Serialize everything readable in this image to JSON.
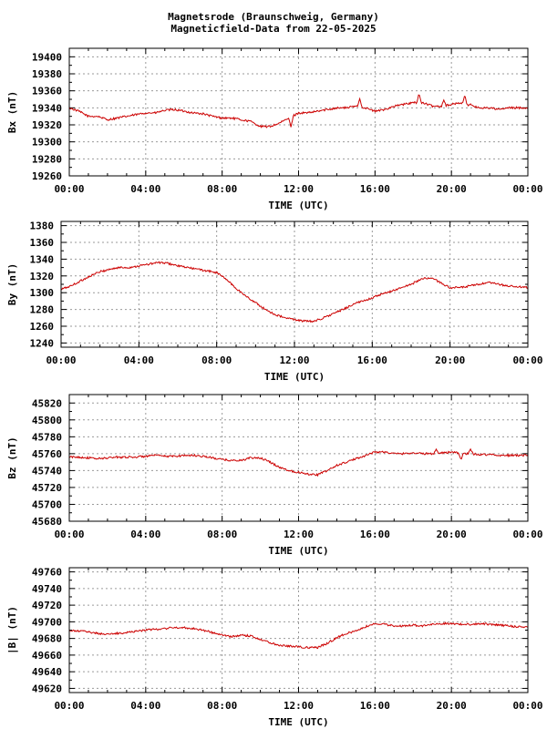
{
  "header": {
    "title_line1": "Magnetsrode (Braunschweig, Germany)",
    "title_line2": "Magneticfield-Data from 22-05-2025"
  },
  "colors": {
    "trace": "#cc0000",
    "grid": "#9a9a9a",
    "frame": "#000000"
  },
  "chart_data": [
    {
      "type": "line",
      "ylabel": "Bx (nT)",
      "xlabel": "TIME (UTC)",
      "grid": true,
      "xlim": [
        0,
        24
      ],
      "ylim": [
        19260,
        19410
      ],
      "yticks": [
        19260,
        19280,
        19300,
        19320,
        19340,
        19360,
        19380,
        19400
      ],
      "xticklabels": [
        "00:00",
        "04:00",
        "08:00",
        "12:00",
        "16:00",
        "20:00",
        "00:00"
      ],
      "series": [
        {
          "x": [
            0,
            0.5,
            1,
            1.5,
            2,
            2.5,
            3,
            3.5,
            4,
            4.5,
            5,
            5.5,
            6,
            6.5,
            7,
            7.5,
            8,
            8.5,
            9,
            9.5,
            10,
            10.5,
            11,
            11.5,
            12,
            12.5,
            13,
            13.5,
            14,
            14.5,
            15,
            15.5,
            16,
            16.5,
            17,
            17.5,
            18,
            18.5,
            19,
            19.5,
            20,
            20.5,
            21,
            21.5,
            22,
            22.5,
            23,
            23.5,
            24
          ],
          "values": [
            19340,
            19336,
            19330,
            19330,
            19326,
            19328,
            19330,
            19332,
            19334,
            19334,
            19337,
            19338,
            19336,
            19334,
            19333,
            19330,
            19328,
            19328,
            19326,
            19324,
            19318,
            19318,
            19322,
            19328,
            19334,
            19334,
            19336,
            19338,
            19340,
            19340,
            19342,
            19340,
            19336,
            19338,
            19342,
            19344,
            19346,
            19346,
            19342,
            19342,
            19344,
            19346,
            19342,
            19340,
            19340,
            19338,
            19340,
            19340,
            19340
          ],
          "spikes": [
            [
              15.2,
              19352
            ],
            [
              18.3,
              19358
            ],
            [
              19.6,
              19350
            ],
            [
              20.7,
              19356
            ],
            [
              21.0,
              19345
            ],
            [
              11.6,
              19316
            ]
          ]
        }
      ]
    },
    {
      "type": "line",
      "ylabel": "By (nT)",
      "xlabel": "TIME (UTC)",
      "grid": true,
      "xlim": [
        0,
        24
      ],
      "ylim": [
        1235,
        1385
      ],
      "yticks": [
        1240,
        1260,
        1280,
        1300,
        1320,
        1340,
        1360,
        1380
      ],
      "xticklabels": [
        "00:00",
        "04:00",
        "08:00",
        "12:00",
        "16:00",
        "20:00",
        "00:00"
      ],
      "series": [
        {
          "x": [
            0,
            0.5,
            1,
            1.5,
            2,
            2.5,
            3,
            3.5,
            4,
            4.5,
            5,
            5.5,
            6,
            6.5,
            7,
            7.5,
            8,
            8.5,
            9,
            9.5,
            10,
            10.5,
            11,
            11.5,
            12,
            12.5,
            13,
            13.5,
            14,
            14.5,
            15,
            15.5,
            16,
            16.5,
            17,
            17.5,
            18,
            18.5,
            19,
            19.5,
            20,
            20.5,
            21,
            21.5,
            22,
            22.5,
            23,
            23.5,
            24
          ],
          "values": [
            1304,
            1308,
            1314,
            1320,
            1325,
            1328,
            1330,
            1330,
            1332,
            1334,
            1336,
            1335,
            1332,
            1330,
            1328,
            1326,
            1324,
            1316,
            1305,
            1296,
            1288,
            1280,
            1274,
            1270,
            1268,
            1266,
            1266,
            1270,
            1275,
            1280,
            1286,
            1290,
            1294,
            1298,
            1302,
            1306,
            1310,
            1316,
            1318,
            1312,
            1306,
            1306,
            1308,
            1310,
            1312,
            1310,
            1308,
            1307,
            1306
          ],
          "spikes": []
        }
      ]
    },
    {
      "type": "line",
      "ylabel": "Bz (nT)",
      "xlabel": "TIME (UTC)",
      "grid": true,
      "xlim": [
        0,
        24
      ],
      "ylim": [
        45680,
        45830
      ],
      "yticks": [
        45680,
        45700,
        45720,
        45740,
        45760,
        45780,
        45800,
        45820
      ],
      "xticklabels": [
        "00:00",
        "04:00",
        "08:00",
        "12:00",
        "16:00",
        "20:00",
        "00:00"
      ],
      "series": [
        {
          "x": [
            0,
            0.5,
            1,
            1.5,
            2,
            2.5,
            3,
            3.5,
            4,
            4.5,
            5,
            5.5,
            6,
            6.5,
            7,
            7.5,
            8,
            8.5,
            9,
            9.5,
            10,
            10.5,
            11,
            11.5,
            12,
            12.5,
            13,
            13.5,
            14,
            14.5,
            15,
            15.5,
            16,
            16.5,
            17,
            17.5,
            18,
            18.5,
            19,
            19.5,
            20,
            20.5,
            21,
            21.5,
            22,
            22.5,
            23,
            23.5,
            24
          ],
          "values": [
            45756,
            45756,
            45755,
            45754,
            45755,
            45756,
            45756,
            45756,
            45757,
            45758,
            45757,
            45757,
            45758,
            45758,
            45757,
            45755,
            45753,
            45752,
            45752,
            45755,
            45755,
            45750,
            45744,
            45740,
            45738,
            45736,
            45735,
            45740,
            45746,
            45750,
            45754,
            45758,
            45762,
            45762,
            45760,
            45760,
            45761,
            45760,
            45760,
            45761,
            45762,
            45760,
            45760,
            45759,
            45759,
            45758,
            45758,
            45758,
            45758
          ],
          "spikes": [
            [
              20.5,
              45752
            ],
            [
              19.2,
              45766
            ],
            [
              21.0,
              45766
            ]
          ]
        }
      ]
    },
    {
      "type": "line",
      "ylabel": "|B| (nT)",
      "xlabel": "TIME (UTC)",
      "grid": true,
      "xlim": [
        0,
        24
      ],
      "ylim": [
        49615,
        49765
      ],
      "yticks": [
        49620,
        49640,
        49660,
        49680,
        49700,
        49720,
        49740,
        49760
      ],
      "xticklabels": [
        "00:00",
        "04:00",
        "08:00",
        "12:00",
        "16:00",
        "20:00",
        "00:00"
      ],
      "series": [
        {
          "x": [
            0,
            0.5,
            1,
            1.5,
            2,
            2.5,
            3,
            3.5,
            4,
            4.5,
            5,
            5.5,
            6,
            6.5,
            7,
            7.5,
            8,
            8.5,
            9,
            9.5,
            10,
            10.5,
            11,
            11.5,
            12,
            12.5,
            13,
            13.5,
            14,
            14.5,
            15,
            15.5,
            16,
            16.5,
            17,
            17.5,
            18,
            18.5,
            19,
            19.5,
            20,
            20.5,
            21,
            21.5,
            22,
            22.5,
            23,
            23.5,
            24
          ],
          "values": [
            49689,
            49689,
            49688,
            49686,
            49685,
            49686,
            49687,
            49689,
            49690,
            49691,
            49692,
            49693,
            49693,
            49692,
            49690,
            49687,
            49684,
            49682,
            49684,
            49683,
            49679,
            49675,
            49672,
            49671,
            49670,
            49669,
            49669,
            49674,
            49681,
            49686,
            49689,
            49694,
            49698,
            49697,
            49695,
            49695,
            49696,
            49695,
            49697,
            49698,
            49698,
            49697,
            49697,
            49698,
            49697,
            49696,
            49695,
            49694,
            49694
          ],
          "spikes": []
        }
      ]
    }
  ]
}
